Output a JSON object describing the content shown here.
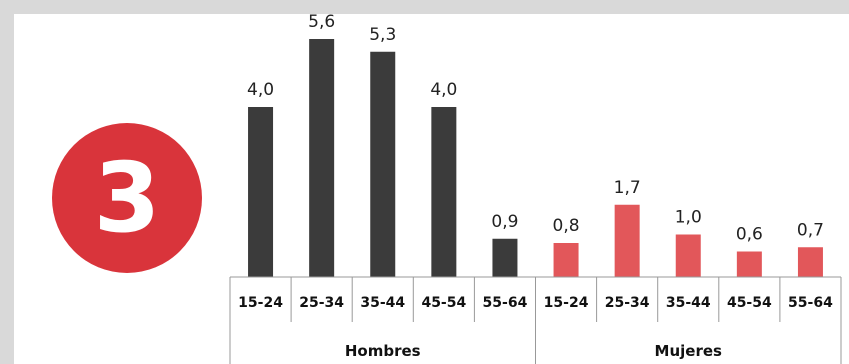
{
  "badge": {
    "label": "3",
    "color": "#d9343b"
  },
  "chart_data": {
    "type": "bar",
    "categories": [
      "15-24",
      "25-34",
      "35-44",
      "45-54",
      "55-64",
      "15-24",
      "25-34",
      "35-44",
      "45-54",
      "55-64"
    ],
    "groups": [
      {
        "label": "Hombres",
        "start": 0,
        "count": 5,
        "color": "#3b3b3b"
      },
      {
        "label": "Mujeres",
        "start": 5,
        "count": 5,
        "color": "#e2575a"
      }
    ],
    "values": [
      4.0,
      5.6,
      5.3,
      4.0,
      0.9,
      0.8,
      1.7,
      1.0,
      0.6,
      0.7
    ],
    "value_labels": [
      "4,0",
      "5,6",
      "5,3",
      "4,0",
      "0,9",
      "0,8",
      "1,7",
      "1,0",
      "0,6",
      "0,7"
    ],
    "ylim": [
      0,
      5.6
    ],
    "grid": false,
    "legend": "none"
  }
}
